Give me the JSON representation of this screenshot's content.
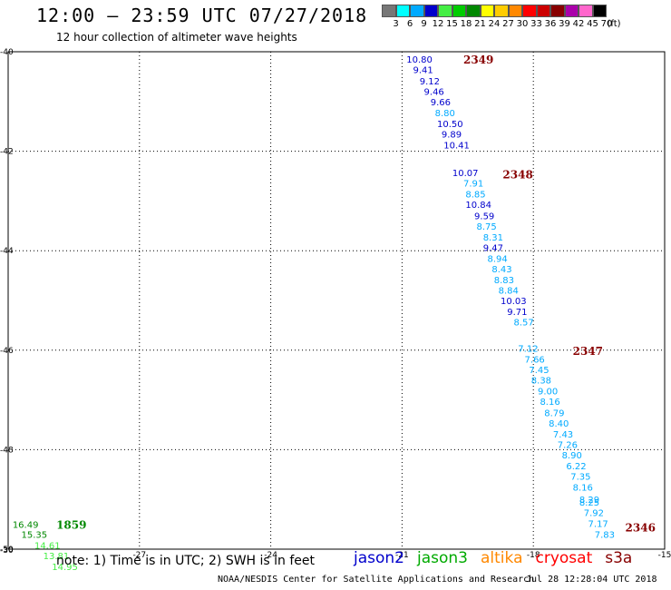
{
  "header": {
    "title": "12:00 – 23:59 UTC 07/27/2018",
    "subtitle": "12 hour collection of altimeter wave heights"
  },
  "legend": {
    "labels": [
      "3",
      "6",
      "9",
      "12",
      "15",
      "18",
      "21",
      "24",
      "27",
      "30",
      "33",
      "36",
      "39",
      "42",
      "45",
      "70"
    ],
    "unit": "(ft)",
    "colors": [
      "#777777",
      "#00ffff",
      "#00aaff",
      "#0000cc",
      "#44ee44",
      "#00cc00",
      "#008800",
      "#ffff00",
      "#ffcc00",
      "#ff8800",
      "#ff0000",
      "#cc0000",
      "#880000",
      "#aa00aa",
      "#ff66cc",
      "#000000"
    ]
  },
  "map": {
    "lon_ticks": [
      "-27",
      "-24",
      "-21",
      "-18",
      "-15"
    ],
    "lat_ticks": [
      "-40",
      "-42",
      "-44",
      "-46",
      "-48",
      "-50"
    ],
    "extra_lon_tick": "-30",
    "pass_labels": [
      {
        "text": "2349",
        "lon": -19.6,
        "lat": -40.15,
        "color": "#880000"
      },
      {
        "text": "2348",
        "lon": -18.7,
        "lat": -42.45,
        "color": "#880000"
      },
      {
        "text": "2347",
        "lon": -17.1,
        "lat": -46.0,
        "color": "#880000"
      },
      {
        "text": "2346",
        "lon": -15.9,
        "lat": -49.55,
        "color": "#880000"
      },
      {
        "text": "1859",
        "lon": -28.9,
        "lat": -49.5,
        "color": "#008800"
      }
    ],
    "wave_heights": [
      {
        "text": "10.80",
        "lon": -20.9,
        "lat": -40.15,
        "color": "#0000cc"
      },
      {
        "text": "9.41",
        "lon": -20.75,
        "lat": -40.36,
        "color": "#0000cc"
      },
      {
        "text": "9.12",
        "lon": -20.6,
        "lat": -40.58,
        "color": "#0000cc"
      },
      {
        "text": "9.46",
        "lon": -20.5,
        "lat": -40.79,
        "color": "#0000cc"
      },
      {
        "text": "9.66",
        "lon": -20.35,
        "lat": -41.0,
        "color": "#0000cc"
      },
      {
        "text": "8.80",
        "lon": -20.25,
        "lat": -41.22,
        "color": "#00aaff"
      },
      {
        "text": "10.50",
        "lon": -20.2,
        "lat": -41.44,
        "color": "#0000cc"
      },
      {
        "text": "9.89",
        "lon": -20.1,
        "lat": -41.65,
        "color": "#0000cc"
      },
      {
        "text": "10.41",
        "lon": -20.05,
        "lat": -41.87,
        "color": "#0000cc"
      },
      {
        "text": "10.07",
        "lon": -19.85,
        "lat": -42.43,
        "color": "#0000cc"
      },
      {
        "text": "7.91",
        "lon": -19.6,
        "lat": -42.64,
        "color": "#00aaff"
      },
      {
        "text": "8.85",
        "lon": -19.55,
        "lat": -42.86,
        "color": "#00aaff"
      },
      {
        "text": "10.84",
        "lon": -19.55,
        "lat": -43.07,
        "color": "#0000cc"
      },
      {
        "text": "9.59",
        "lon": -19.35,
        "lat": -43.29,
        "color": "#0000cc"
      },
      {
        "text": "8.75",
        "lon": -19.3,
        "lat": -43.5,
        "color": "#00aaff"
      },
      {
        "text": "8.31",
        "lon": -19.15,
        "lat": -43.72,
        "color": "#00aaff"
      },
      {
        "text": "9.47",
        "lon": -19.15,
        "lat": -43.93,
        "color": "#0000cc"
      },
      {
        "text": "8.94",
        "lon": -19.05,
        "lat": -44.15,
        "color": "#00aaff"
      },
      {
        "text": "8.43",
        "lon": -18.95,
        "lat": -44.36,
        "color": "#00aaff"
      },
      {
        "text": "8.83",
        "lon": -18.9,
        "lat": -44.58,
        "color": "#00aaff"
      },
      {
        "text": "8.84",
        "lon": -18.8,
        "lat": -44.79,
        "color": "#00aaff"
      },
      {
        "text": "10.03",
        "lon": -18.75,
        "lat": -45.0,
        "color": "#0000cc"
      },
      {
        "text": "9.71",
        "lon": -18.6,
        "lat": -45.22,
        "color": "#0000cc"
      },
      {
        "text": "8.57",
        "lon": -18.45,
        "lat": -45.43,
        "color": "#00aaff"
      },
      {
        "text": "7.12",
        "lon": -18.35,
        "lat": -45.96,
        "color": "#00aaff"
      },
      {
        "text": "7.66",
        "lon": -18.2,
        "lat": -46.18,
        "color": "#00aaff"
      },
      {
        "text": "7.45",
        "lon": -18.1,
        "lat": -46.39,
        "color": "#00aaff"
      },
      {
        "text": "8.38",
        "lon": -18.05,
        "lat": -46.6,
        "color": "#00aaff"
      },
      {
        "text": "9.00",
        "lon": -17.9,
        "lat": -46.82,
        "color": "#00aaff"
      },
      {
        "text": "8.16",
        "lon": -17.85,
        "lat": -47.03,
        "color": "#00aaff"
      },
      {
        "text": "8.79",
        "lon": -17.75,
        "lat": -47.25,
        "color": "#00aaff"
      },
      {
        "text": "8.40",
        "lon": -17.65,
        "lat": -47.46,
        "color": "#00aaff"
      },
      {
        "text": "7.43",
        "lon": -17.55,
        "lat": -47.68,
        "color": "#00aaff"
      },
      {
        "text": "7.26",
        "lon": -17.45,
        "lat": -47.89,
        "color": "#00aaff"
      },
      {
        "text": "8.90",
        "lon": -17.35,
        "lat": -48.1,
        "color": "#00aaff"
      },
      {
        "text": "6.22",
        "lon": -17.25,
        "lat": -48.32,
        "color": "#00aaff"
      },
      {
        "text": "7.35",
        "lon": -17.15,
        "lat": -48.53,
        "color": "#00aaff"
      },
      {
        "text": "8.16",
        "lon": -17.1,
        "lat": -48.75,
        "color": "#00aaff"
      },
      {
        "text": "8.29",
        "lon": -16.95,
        "lat": -49.0,
        "color": "#00aaff"
      },
      {
        "text": "8.25",
        "lon": -16.95,
        "lat": -49.05,
        "color": "#00aaff"
      },
      {
        "text": "7.92",
        "lon": -16.85,
        "lat": -49.26,
        "color": "#00aaff"
      },
      {
        "text": "7.17",
        "lon": -16.75,
        "lat": -49.48,
        "color": "#00aaff"
      },
      {
        "text": "7.83",
        "lon": -16.6,
        "lat": -49.7,
        "color": "#00aaff"
      },
      {
        "text": "16.49",
        "lon": -29.9,
        "lat": -49.5,
        "color": "#008800"
      },
      {
        "text": "15.35",
        "lon": -29.7,
        "lat": -49.7,
        "color": "#008800"
      },
      {
        "text": "14.61",
        "lon": -29.4,
        "lat": -49.92,
        "color": "#44ee44"
      },
      {
        "text": "13.81",
        "lon": -29.2,
        "lat": -50.13,
        "color": "#44ee44"
      },
      {
        "text": "14.95",
        "lon": -29.0,
        "lat": -50.35,
        "color": "#44ee44"
      }
    ]
  },
  "note": "note: 1) Time is in UTC; 2) SWH is in feet",
  "missions": [
    {
      "name": "jason2",
      "color": "#0000cc"
    },
    {
      "name": "jason3",
      "color": "#00aa00"
    },
    {
      "name": "altika",
      "color": "#ff8800"
    },
    {
      "name": "cryosat",
      "color": "#ff0000"
    },
    {
      "name": "s3a",
      "color": "#880000"
    }
  ],
  "footer": {
    "credit": "NOAA/NESDIS Center for Satellite Applications and Research",
    "timestamp": "Jul 28 12:28:04 UTC 2018"
  }
}
